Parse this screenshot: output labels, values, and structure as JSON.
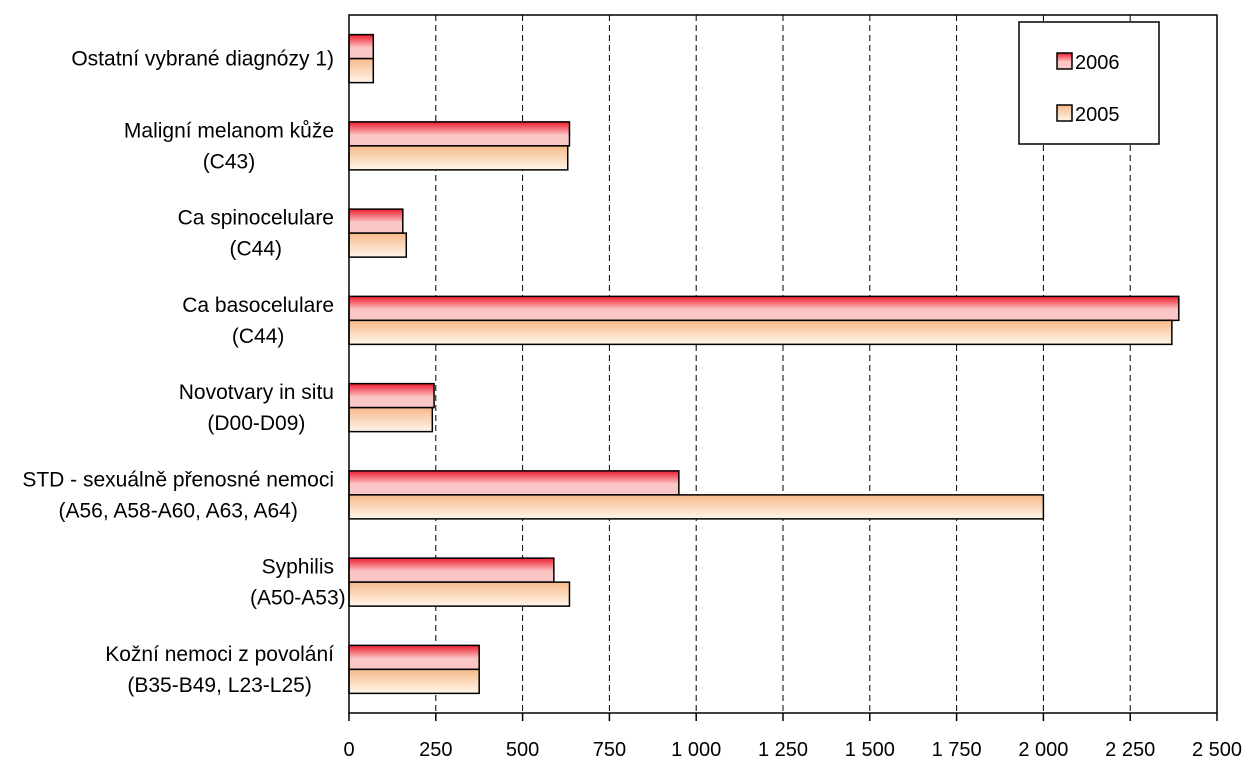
{
  "chart_data": {
    "type": "bar",
    "orientation": "horizontal",
    "categories": [
      [
        "Ostatní vybrané diagnózy 1)"
      ],
      [
        "Maligní melanom kůže",
        "(C43)"
      ],
      [
        "Ca spinocelulare",
        "(C44)"
      ],
      [
        "Ca basocelulare",
        "(C44)"
      ],
      [
        "Novotvary in situ",
        "(D00-D09)"
      ],
      [
        "STD - sexuálně přenosné nemoci",
        "(A56, A58-A60, A63, A64)"
      ],
      [
        "Syphilis",
        "(A50-A53)"
      ],
      [
        "Kožní nemoci z povolání",
        "(B35-B49, L23-L25)"
      ]
    ],
    "series": [
      {
        "name": "2006",
        "values": [
          70,
          635,
          155,
          2390,
          245,
          950,
          590,
          375
        ]
      },
      {
        "name": "2005",
        "values": [
          70,
          630,
          165,
          2370,
          240,
          2000,
          635,
          375
        ]
      }
    ],
    "x_ticks": [
      "0",
      "250",
      "500",
      "750",
      "1 000",
      "1 250",
      "1 500",
      "1 750",
      "2 000",
      "2 250",
      "2 500"
    ],
    "xlim": [
      0,
      2500
    ],
    "grid": "vertical dashed",
    "legend_position": "top-right",
    "colors": {
      "series_2006_dark": "#ee1c2e",
      "series_2006_light": "#fbc6c6",
      "series_2005_dark": "#f6b98a",
      "series_2005_light": "#fff6ea",
      "outline": "#000000"
    }
  }
}
